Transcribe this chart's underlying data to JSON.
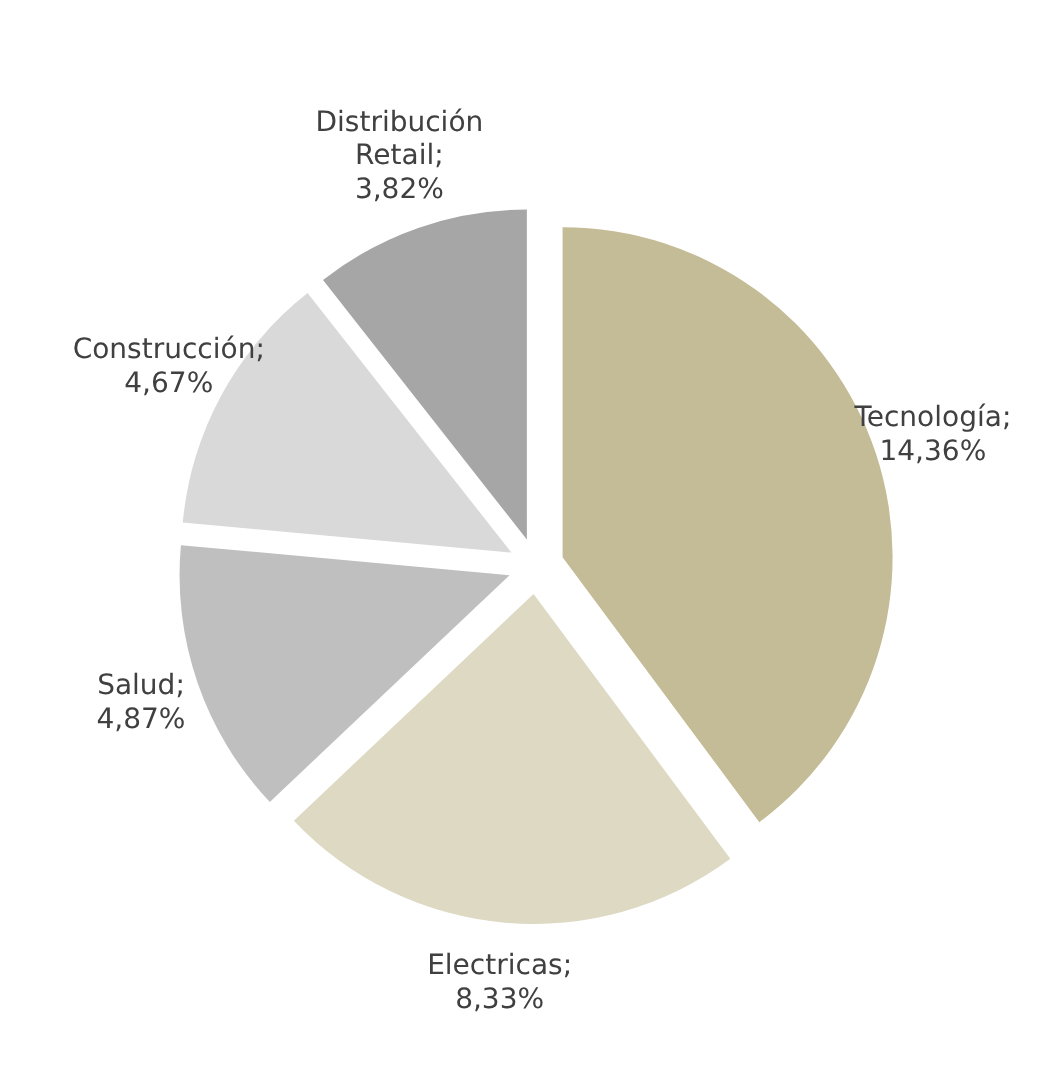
{
  "chart_data": {
    "type": "pie",
    "categories": [
      "Tecnología",
      "Electricas",
      "Salud",
      "Construcción",
      "Distribución Retail"
    ],
    "values": [
      14.36,
      8.33,
      4.87,
      4.67,
      3.82
    ],
    "value_labels": [
      "; 14,36%",
      "; 8,33%",
      "; 4,87%",
      "; 4,67%",
      "; 3,82%"
    ],
    "colors": [
      "#c4bc96",
      "#ddd9c3",
      "#bfbfbf",
      "#d9d9d9",
      "#a6a6a6"
    ],
    "legend": false
  }
}
